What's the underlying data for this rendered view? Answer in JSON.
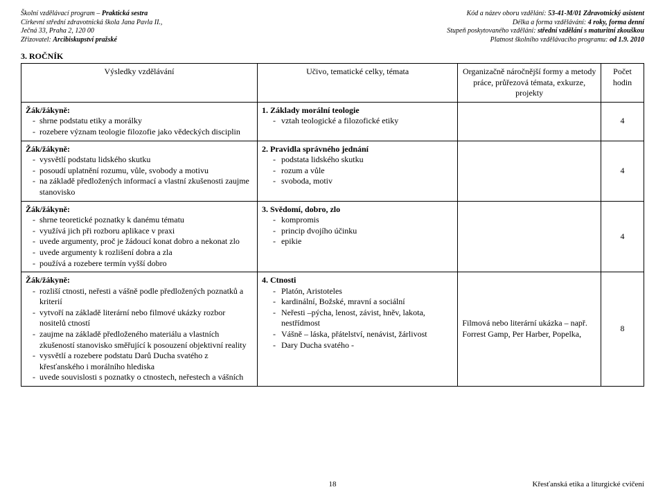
{
  "header": {
    "left": [
      {
        "pre": "Školní vzdělávací program – ",
        "emph": "Praktická sestra"
      },
      {
        "pre": "Církevní střední zdravotnická škola Jana Pavla II.,",
        "emph": ""
      },
      {
        "pre": "Ječná 33, Praha 2, 120 00",
        "emph": ""
      },
      {
        "pre": "Zřizovatel: ",
        "emph": "Arcibiskupství pražské"
      }
    ],
    "right": [
      {
        "pre": "Kód a název oboru vzdělání: ",
        "emph": "53-41-M/01 Zdravotnický asistent"
      },
      {
        "pre": "Délka a forma vzdělávání: ",
        "emph": "4 roky, forma denní"
      },
      {
        "pre": "Stupeň poskytovaného vzdělání: ",
        "emph": "střední vzdělání s maturitní zkouškou"
      },
      {
        "pre": "Platnost školního vzdělávacího programu: ",
        "emph": "od 1.9. 2010"
      }
    ]
  },
  "section_title": "3. ROČNÍK",
  "table": {
    "headers": {
      "c1": "Výsledky vzdělávání",
      "c2": "Učivo, tematické celky, témata",
      "c3": "Organizačně náročnější formy a metody práce, průřezová témata, exkurze, projekty",
      "c4": "Počet hodin"
    },
    "rows": [
      {
        "c1": {
          "lead": "Žák/žákyně:",
          "items": [
            "shrne podstatu etiky a morálky",
            "rozebere význam teologie filozofie jako vědeckých disciplin"
          ]
        },
        "c2": {
          "lead": "1. Základy morální teologie",
          "items": [
            "vztah teologické a filozofické etiky"
          ]
        },
        "c3": "",
        "c4": "4"
      },
      {
        "c1": {
          "lead": "Žák/žákyně:",
          "items": [
            "vysvětlí podstatu lidského skutku",
            "posoudí uplatnění rozumu, vůle, svobody a motivu",
            "na základě předložených informací a vlastní zkušenosti zaujme stanovisko"
          ]
        },
        "c2": {
          "lead": "2. Pravidla správného jednání",
          "items": [
            "podstata lidského skutku",
            "rozum a vůle",
            "svoboda, motiv"
          ]
        },
        "c3": "",
        "c4": "4"
      },
      {
        "c1": {
          "lead": "Žák/žákyně:",
          "items": [
            "shrne teoretické poznatky k danému tématu",
            "využívá jich při rozboru aplikace v praxi",
            "uvede argumenty, proč je žádoucí konat dobro a nekonat zlo",
            "uvede argumenty k rozlišení dobra a zla",
            "používá a rozebere termín vyšší dobro"
          ]
        },
        "c2": {
          "lead": "3. Svědomí, dobro, zlo",
          "items": [
            "kompromis",
            "princip dvojího účinku",
            "epikie"
          ]
        },
        "c3": "",
        "c4": "4"
      },
      {
        "c1": {
          "lead": "Žák/žákyně:",
          "items": [
            "rozliší ctnosti, neřesti a vášně podle předložených poznatků a kriterií",
            "vytvoří na základě literární nebo filmové ukázky rozbor nositelů ctností",
            "zaujme na základě předloženého materiálu a vlastních zkušeností stanovisko směřující k posouzení objektivní reality",
            "vysvětlí a rozebere podstatu Darů Ducha svatého z křesťanského i morálního hlediska",
            "uvede souvislosti s poznatky o ctnostech, neřestech a vášních"
          ]
        },
        "c2": {
          "lead": "4. Ctnosti",
          "items": [
            "Platón, Aristoteles",
            "kardinální, Božské, mravní a sociální",
            "Neřesti –pýcha, lenost, závist, hněv, lakota, nestřídmost",
            "Vášně – láska, přátelství, nenávist, žárlivost",
            "Dary Ducha svatého -"
          ]
        },
        "c3": "Filmová nebo literární ukázka – např. Forrest Gamp, Per Harber, Popelka,",
        "c4": "8"
      }
    ]
  },
  "footer": {
    "page": "18",
    "right": "Křesťanská etika a liturgické cvičení"
  }
}
